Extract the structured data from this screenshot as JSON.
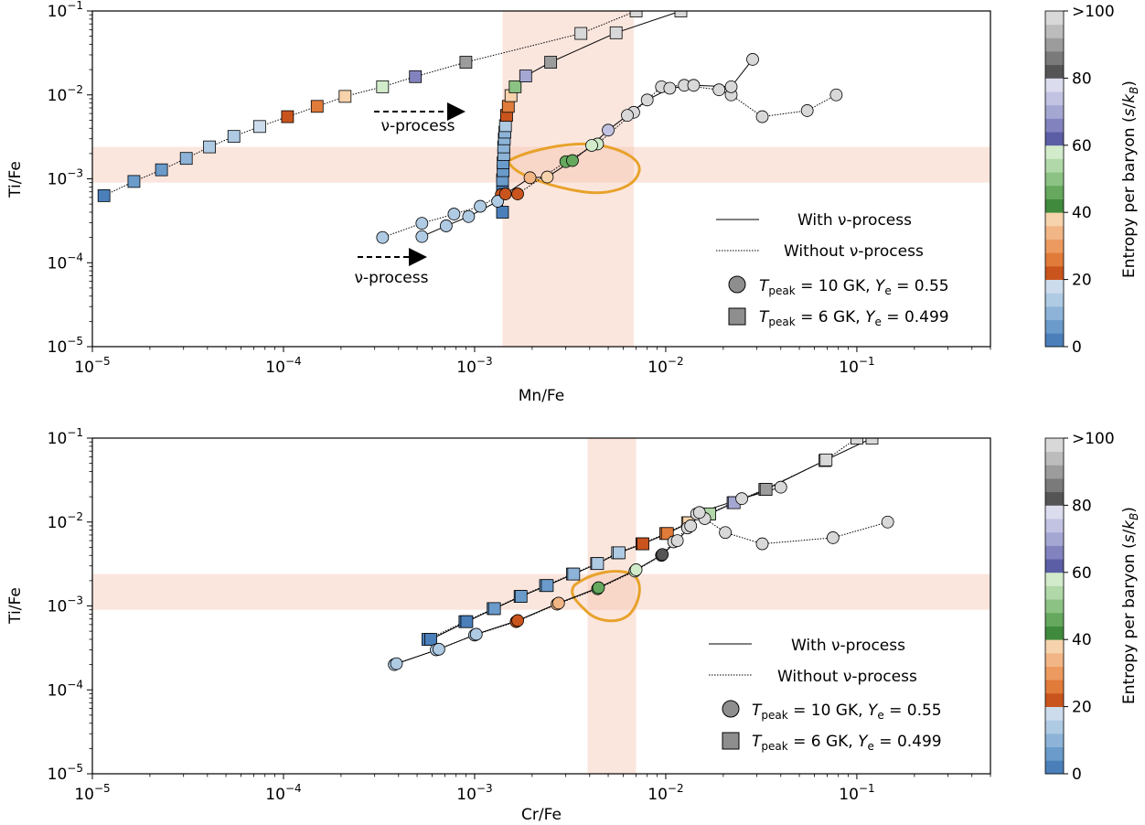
{
  "legend": {
    "with": "With ν-process",
    "without": "Without ν-process",
    "circle": "T_peak = 10 GK, Y_e = 0.55",
    "square": "T_peak = 6 GK, Y_e = 0.499"
  },
  "colorbar": {
    "label": "Entropy per baryon (s/k_B)",
    "ticks": [
      "0",
      "20",
      "40",
      "60",
      "80",
      ">100"
    ],
    "colors": [
      "#4a7fba",
      "#6a9bca",
      "#8db4d8",
      "#afcae3",
      "#ccdcec",
      "#c9541d",
      "#e07b3a",
      "#ec9a5f",
      "#f2b686",
      "#f6d3ac",
      "#3f8a3c",
      "#65a85e",
      "#8cc284",
      "#b1d8a8",
      "#d2eccb",
      "#5b5ea4",
      "#8283be",
      "#a5a7d3",
      "#c2c3e2",
      "#dcdcef",
      "#555555",
      "#7a7a7a",
      "#9c9c9c",
      "#bcbcbc",
      "#d8d8d8"
    ]
  },
  "chart_data": [
    {
      "type": "scatter",
      "xlabel": "Mn/Fe",
      "ylabel": "Ti/Fe",
      "xlim": [
        1e-05,
        0.5
      ],
      "ylim": [
        1e-05,
        0.1
      ],
      "x_ticks": [
        "10^-5",
        "10^-4",
        "10^-3",
        "10^-2",
        "10^-1"
      ],
      "y_ticks": [
        "10^-5",
        "10^-4",
        "10^-3",
        "10^-2",
        "10^-1"
      ],
      "observed_bands": {
        "x": [
          0.0014,
          0.0068
        ],
        "y": [
          0.0009,
          0.0024
        ]
      },
      "annotations": [
        "ν-process",
        "ν-process"
      ],
      "series": [
        {
          "name": "Without ν-process (squares)",
          "marker": "square",
          "line": "dotted",
          "points": [
            [
              1.15e-05,
              0.00063
            ],
            [
              1.65e-05,
              0.00093
            ],
            [
              2.3e-05,
              0.00128
            ],
            [
              3.1e-05,
              0.00175
            ],
            [
              4.1e-05,
              0.0024
            ],
            [
              5.5e-05,
              0.0032
            ],
            [
              7.5e-05,
              0.0042
            ],
            [
              0.000105,
              0.0055
            ],
            [
              0.00015,
              0.0073
            ],
            [
              0.00021,
              0.0096
            ],
            [
              0.00033,
              0.0125
            ],
            [
              0.00049,
              0.0165
            ],
            [
              0.0009,
              0.0245
            ],
            [
              0.0036,
              0.054
            ],
            [
              0.007,
              0.1
            ]
          ],
          "entropy": [
            2,
            4,
            6,
            9,
            12,
            15,
            18,
            22,
            26,
            37,
            57,
            67,
            90,
            98,
            100
          ]
        },
        {
          "name": "With ν-process (squares)",
          "marker": "square",
          "line": "solid",
          "points": [
            [
              0.0014,
              0.0004
            ],
            [
              0.0014,
              0.0007
            ],
            [
              0.0014,
              0.00097
            ],
            [
              0.00141,
              0.00125
            ],
            [
              0.00141,
              0.00155
            ],
            [
              0.00142,
              0.00195
            ],
            [
              0.00142,
              0.0024
            ],
            [
              0.00143,
              0.003
            ],
            [
              0.00144,
              0.0036
            ],
            [
              0.00145,
              0.0043
            ],
            [
              0.00147,
              0.0057
            ],
            [
              0.0015,
              0.0073
            ],
            [
              0.00155,
              0.0098
            ],
            [
              0.00163,
              0.0125
            ],
            [
              0.00185,
              0.0168
            ],
            [
              0.0025,
              0.0245
            ],
            [
              0.0055,
              0.055
            ],
            [
              0.012,
              0.1
            ]
          ],
          "entropy": [
            2,
            3,
            4,
            5,
            7,
            8,
            9,
            10,
            11,
            12,
            22,
            24,
            36,
            50,
            68,
            90,
            98,
            100
          ]
        },
        {
          "name": "Without ν-process (circles)",
          "marker": "circle",
          "line": "dotted",
          "points": [
            [
              0.00033,
              0.0002
            ],
            [
              0.00053,
              0.000295
            ],
            [
              0.00078,
              0.00038
            ],
            [
              0.00107,
              0.00047
            ],
            [
              0.00138,
              0.00065
            ],
            [
              0.00168,
              0.00066
            ],
            [
              0.003,
              0.0016
            ],
            [
              0.0044,
              0.0026
            ],
            [
              0.0068,
              0.0062
            ],
            [
              0.0095,
              0.0125
            ],
            [
              0.0125,
              0.013
            ],
            [
              0.019,
              0.0115
            ],
            [
              0.022,
              0.01
            ],
            [
              0.032,
              0.0055
            ],
            [
              0.055,
              0.0065
            ],
            [
              0.078,
              0.01
            ]
          ],
          "entropy": [
            12,
            13,
            13,
            14,
            22,
            22,
            46,
            58,
            100,
            100,
            100,
            100,
            100,
            100,
            100,
            100
          ]
        },
        {
          "name": "With ν-process (circles)",
          "marker": "circle",
          "line": "solid",
          "points": [
            [
              0.00053,
              0.000205
            ],
            [
              0.00071,
              0.000275
            ],
            [
              0.00093,
              0.000355
            ],
            [
              0.00132,
              0.00054
            ],
            [
              0.00145,
              0.00066
            ],
            [
              0.00195,
              0.00103
            ],
            [
              0.0024,
              0.00105
            ],
            [
              0.00325,
              0.00165
            ],
            [
              0.0041,
              0.0025
            ],
            [
              0.005,
              0.0038
            ],
            [
              0.0063,
              0.0057
            ],
            [
              0.008,
              0.0087
            ],
            [
              0.0105,
              0.012
            ],
            [
              0.014,
              0.013
            ],
            [
              0.022,
              0.0125
            ],
            [
              0.0285,
              0.0265
            ]
          ],
          "entropy": [
            13,
            12,
            13,
            14,
            21,
            35,
            36,
            45,
            57,
            75,
            100,
            100,
            100,
            100,
            100,
            100
          ]
        }
      ]
    },
    {
      "type": "scatter",
      "xlabel": "Cr/Fe",
      "ylabel": "Ti/Fe",
      "xlim": [
        1e-05,
        0.5
      ],
      "ylim": [
        1e-05,
        0.1
      ],
      "x_ticks": [
        "10^-5",
        "10^-4",
        "10^-3",
        "10^-2",
        "10^-1"
      ],
      "y_ticks": [
        "10^-5",
        "10^-4",
        "10^-3",
        "10^-2",
        "10^-1"
      ],
      "observed_bands": {
        "x": [
          0.0039,
          0.007
        ],
        "y": [
          0.0009,
          0.0024
        ]
      },
      "series": [
        {
          "name": "Without ν-process (squares)",
          "marker": "square",
          "line": "dotted",
          "points": [
            [
              0.00057,
              0.0004
            ],
            [
              0.00089,
              0.00065
            ],
            [
              0.00125,
              0.00093
            ],
            [
              0.00173,
              0.0013
            ],
            [
              0.00235,
              0.00175
            ],
            [
              0.00325,
              0.0024
            ],
            [
              0.00435,
              0.0032
            ],
            [
              0.0056,
              0.0043
            ],
            [
              0.0075,
              0.0055
            ],
            [
              0.01,
              0.0073
            ],
            [
              0.013,
              0.0098
            ],
            [
              0.0168,
              0.0125
            ],
            [
              0.0225,
              0.017
            ],
            [
              0.033,
              0.0245
            ],
            [
              0.068,
              0.054
            ],
            [
              0.1,
              0.1
            ]
          ],
          "entropy": [
            2,
            3,
            4,
            6,
            7,
            9,
            12,
            14,
            22,
            26,
            38,
            52,
            68,
            90,
            98,
            100
          ]
        },
        {
          "name": "With ν-process (squares)",
          "marker": "square",
          "line": "solid",
          "points": [
            [
              0.00059,
              0.0004
            ],
            [
              0.00091,
              0.00065
            ],
            [
              0.00127,
              0.00093
            ],
            [
              0.00175,
              0.0013
            ],
            [
              0.0024,
              0.00175
            ],
            [
              0.0033,
              0.0024
            ],
            [
              0.0044,
              0.0032
            ],
            [
              0.0057,
              0.0043
            ],
            [
              0.0076,
              0.0055
            ],
            [
              0.0102,
              0.0073
            ],
            [
              0.0132,
              0.0098
            ],
            [
              0.017,
              0.0125
            ],
            [
              0.0228,
              0.017
            ],
            [
              0.0335,
              0.0245
            ],
            [
              0.069,
              0.055
            ],
            [
              0.12,
              0.1
            ]
          ],
          "entropy": [
            2,
            3,
            4,
            6,
            7,
            9,
            12,
            14,
            22,
            26,
            38,
            52,
            68,
            90,
            98,
            100
          ]
        },
        {
          "name": "Without ν-process (circles)",
          "marker": "circle",
          "line": "dotted",
          "points": [
            [
              0.00038,
              0.0002
            ],
            [
              0.00063,
              0.0003
            ],
            [
              0.001,
              0.00045
            ],
            [
              0.00165,
              0.00065
            ],
            [
              0.0027,
              0.00105
            ],
            [
              0.0044,
              0.0016
            ],
            [
              0.0069,
              0.0026
            ],
            [
              0.0095,
              0.004
            ],
            [
              0.011,
              0.0058
            ],
            [
              0.013,
              0.0085
            ],
            [
              0.0145,
              0.0125
            ],
            [
              0.016,
              0.011
            ],
            [
              0.0205,
              0.0075
            ],
            [
              0.032,
              0.0055
            ],
            [
              0.075,
              0.0065
            ],
            [
              0.145,
              0.01
            ]
          ],
          "entropy": [
            12,
            13,
            13,
            21,
            34,
            46,
            58,
            80,
            100,
            100,
            100,
            100,
            100,
            100,
            100,
            100
          ]
        },
        {
          "name": "With ν-process (circles)",
          "marker": "circle",
          "line": "solid",
          "points": [
            [
              0.00039,
              0.000205
            ],
            [
              0.00065,
              0.000305
            ],
            [
              0.00102,
              0.00046
            ],
            [
              0.00168,
              0.00067
            ],
            [
              0.00275,
              0.00108
            ],
            [
              0.00445,
              0.00165
            ],
            [
              0.007,
              0.0027
            ],
            [
              0.0096,
              0.0041
            ],
            [
              0.0115,
              0.006
            ],
            [
              0.0135,
              0.009
            ],
            [
              0.015,
              0.013
            ],
            [
              0.025,
              0.019
            ],
            [
              0.04,
              0.026
            ]
          ],
          "entropy": [
            12,
            13,
            13,
            21,
            34,
            46,
            58,
            80,
            100,
            100,
            100,
            100,
            100
          ]
        }
      ]
    }
  ]
}
